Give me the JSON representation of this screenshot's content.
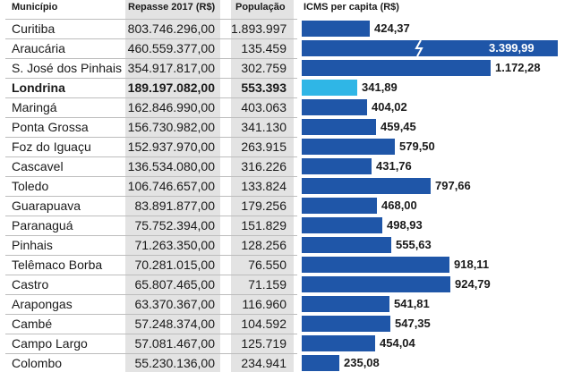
{
  "chart_data": {
    "type": "table",
    "headers": {
      "municipio": "Município",
      "repasse": "Repasse 2017 (R$)",
      "populacao": "População",
      "icms": "ICMS per capita (R$)"
    },
    "highlight": "Londrina",
    "break_scale_for": "Araucária",
    "bar_max_value": 1172.28,
    "colors": {
      "bar": "#1f56a8",
      "highlight": "#2fb6e6",
      "column_bg": "#e3e3e3"
    },
    "rows": [
      {
        "municipio": "Curitiba",
        "repasse": "803.746.296,00",
        "populacao": "1.893.997",
        "icms": 424.37,
        "icms_label": "424,37"
      },
      {
        "municipio": "Araucária",
        "repasse": "460.559.377,00",
        "populacao": "135.459",
        "icms": 3399.99,
        "icms_label": "3.399,99"
      },
      {
        "municipio": "S. José dos Pinhais",
        "repasse": "354.917.817,00",
        "populacao": "302.759",
        "icms": 1172.28,
        "icms_label": "1.172,28"
      },
      {
        "municipio": "Londrina",
        "repasse": "189.197.082,00",
        "populacao": "553.393",
        "icms": 341.89,
        "icms_label": "341,89"
      },
      {
        "municipio": "Maringá",
        "repasse": "162.846.990,00",
        "populacao": "403.063",
        "icms": 404.02,
        "icms_label": "404,02"
      },
      {
        "municipio": "Ponta Grossa",
        "repasse": "156.730.982,00",
        "populacao": "341.130",
        "icms": 459.45,
        "icms_label": "459,45"
      },
      {
        "municipio": "Foz do Iguaçu",
        "repasse": "152.937.970,00",
        "populacao": "263.915",
        "icms": 579.5,
        "icms_label": "579,50"
      },
      {
        "municipio": "Cascavel",
        "repasse": "136.534.080,00",
        "populacao": "316.226",
        "icms": 431.76,
        "icms_label": "431,76"
      },
      {
        "municipio": "Toledo",
        "repasse": "106.746.657,00",
        "populacao": "133.824",
        "icms": 797.66,
        "icms_label": "797,66"
      },
      {
        "municipio": "Guarapuava",
        "repasse": "83.891.877,00",
        "populacao": "179.256",
        "icms": 468.0,
        "icms_label": "468,00"
      },
      {
        "municipio": "Paranaguá",
        "repasse": "75.752.394,00",
        "populacao": "151.829",
        "icms": 498.93,
        "icms_label": "498,93"
      },
      {
        "municipio": "Pinhais",
        "repasse": "71.263.350,00",
        "populacao": "128.256",
        "icms": 555.63,
        "icms_label": "555,63"
      },
      {
        "municipio": "Telêmaco Borba",
        "repasse": "70.281.015,00",
        "populacao": "76.550",
        "icms": 918.11,
        "icms_label": "918,11"
      },
      {
        "municipio": "Castro",
        "repasse": "65.807.465,00",
        "populacao": "71.159",
        "icms": 924.79,
        "icms_label": "924,79"
      },
      {
        "municipio": "Arapongas",
        "repasse": "63.370.367,00",
        "populacao": "116.960",
        "icms": 541.81,
        "icms_label": "541,81"
      },
      {
        "municipio": "Cambé",
        "repasse": "57.248.374,00",
        "populacao": "104.592",
        "icms": 547.35,
        "icms_label": "547,35"
      },
      {
        "municipio": "Campo Largo",
        "repasse": "57.081.467,00",
        "populacao": "125.719",
        "icms": 454.04,
        "icms_label": "454,04"
      },
      {
        "municipio": "Colombo",
        "repasse": "55.230.136,00",
        "populacao": "234.941",
        "icms": 235.08,
        "icms_label": "235,08"
      }
    ]
  }
}
